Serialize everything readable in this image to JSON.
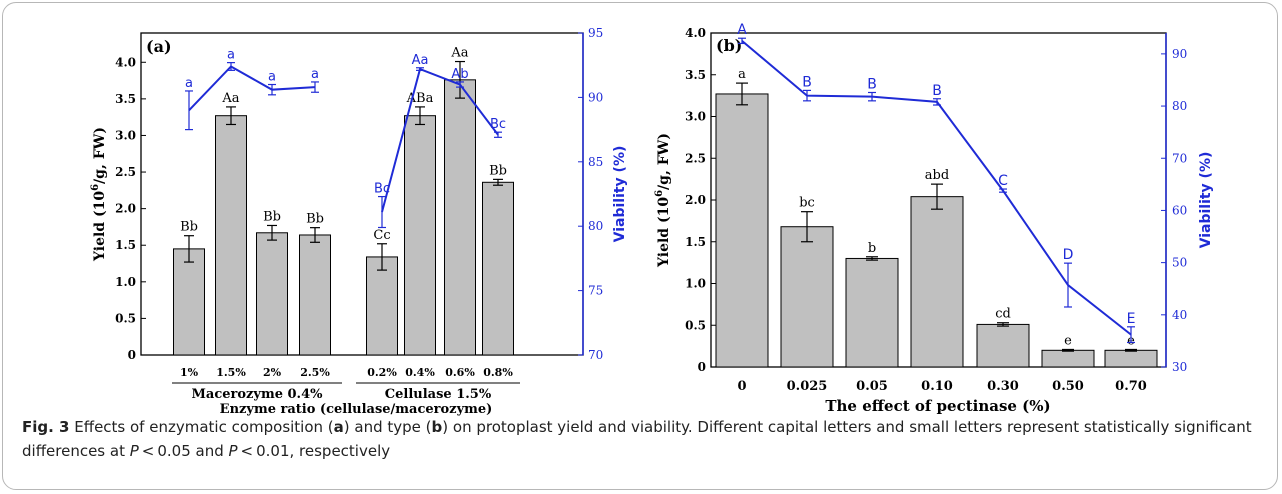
{
  "chart_data": [
    {
      "type": "bar",
      "panel_label": "(a)",
      "xlabel": "Enzyme ratio (cellulase/macerozyme)",
      "ylabel": "Yield (10^6/g, FW)",
      "ylabel_parts": {
        "pre": "Yield (10",
        "sup": "6",
        "post": "/g, FW)"
      },
      "y2label": "Viability (%)",
      "ylim": [
        0,
        4.4
      ],
      "y2lim": [
        70,
        95
      ],
      "y_ticks": [
        "0",
        "0.5",
        "1.0",
        "1.5",
        "2.0",
        "2.5",
        "3.0",
        "3.5",
        "4.0"
      ],
      "y2_ticks": [
        "70",
        "75",
        "80",
        "85",
        "90",
        "95"
      ],
      "groups": [
        {
          "label": "Macerozyme 0.4%",
          "categories": [
            "1%",
            "1.5%",
            "2%",
            "2.5%"
          ]
        },
        {
          "label": "Cellulase 1.5%",
          "categories": [
            "0.2%",
            "0.4%",
            "0.6%",
            "0.8%"
          ]
        }
      ],
      "bars": [
        {
          "group": 0,
          "category": "1%",
          "value": 1.45,
          "error": 0.18,
          "letter": "Bb"
        },
        {
          "group": 0,
          "category": "1.5%",
          "value": 3.27,
          "error": 0.12,
          "letter": "Aa"
        },
        {
          "group": 0,
          "category": "2%",
          "value": 1.67,
          "error": 0.1,
          "letter": "Bb"
        },
        {
          "group": 0,
          "category": "2.5%",
          "value": 1.64,
          "error": 0.1,
          "letter": "Bb"
        },
        {
          "group": 1,
          "category": "0.2%",
          "value": 1.34,
          "error": 0.18,
          "letter": "Cc"
        },
        {
          "group": 1,
          "category": "0.4%",
          "value": 3.27,
          "error": 0.12,
          "letter": "ABa"
        },
        {
          "group": 1,
          "category": "0.6%",
          "value": 3.76,
          "error": 0.25,
          "letter": "Aa"
        },
        {
          "group": 1,
          "category": "0.8%",
          "value": 2.36,
          "error": 0.04,
          "letter": "Bb"
        }
      ],
      "viability_series": [
        {
          "group": 0,
          "values": [
            89.0,
            92.4,
            90.6,
            90.8
          ],
          "errors": [
            1.5,
            0.3,
            0.4,
            0.4
          ],
          "letters": [
            "a",
            "a",
            "a",
            "a"
          ]
        },
        {
          "group": 1,
          "values": [
            81.1,
            92.2,
            91.0,
            87.1
          ],
          "errors": [
            1.2,
            0.1,
            0.2,
            0.2
          ],
          "letters": [
            "Bc",
            "Aa",
            "Ab",
            "Bc"
          ]
        }
      ],
      "bar_color": "#c0c0c0",
      "line_color": "#1f2bd6"
    },
    {
      "type": "bar",
      "panel_label": "(b)",
      "xlabel": "The effect of pectinase (%)",
      "ylabel": "Yield (10^6/g, FW)",
      "ylabel_parts": {
        "pre": "Yield (10",
        "sup": "6",
        "post": "/g, FW)"
      },
      "y2label": "Viability (%)",
      "ylim": [
        0,
        4.0
      ],
      "y2lim": [
        30,
        94
      ],
      "y_ticks": [
        "0",
        "0.5",
        "1.0",
        "1.5",
        "2.0",
        "2.5",
        "3.0",
        "3.5",
        "4.0"
      ],
      "y2_ticks": [
        "30",
        "40",
        "50",
        "60",
        "70",
        "80",
        "90"
      ],
      "categories": [
        "0",
        "0.025",
        "0.05",
        "0.10",
        "0.30",
        "0.50",
        "0.70"
      ],
      "bars": [
        {
          "category": "0",
          "value": 3.27,
          "error": 0.13,
          "letter": "a"
        },
        {
          "category": "0.025",
          "value": 1.68,
          "error": 0.18,
          "letter": "bc"
        },
        {
          "category": "0.05",
          "value": 1.3,
          "error": 0.02,
          "letter": "b"
        },
        {
          "category": "0.10",
          "value": 2.04,
          "error": 0.15,
          "letter": "abd"
        },
        {
          "category": "0.30",
          "value": 0.51,
          "error": 0.02,
          "letter": "cd"
        },
        {
          "category": "0.50",
          "value": 0.2,
          "error": 0.01,
          "letter": "e"
        },
        {
          "category": "0.70",
          "value": 0.2,
          "error": 0.01,
          "letter": "e"
        }
      ],
      "viability_series": [
        {
          "values": [
            92.5,
            82.0,
            81.8,
            80.8,
            63.8,
            45.7,
            36.2
          ],
          "errors": [
            0.5,
            1.0,
            0.8,
            0.6,
            0.3,
            4.2,
            1.5
          ],
          "letters": [
            "A",
            "B",
            "B",
            "B",
            "C",
            "D",
            "E"
          ]
        }
      ],
      "bar_color": "#c0c0c0",
      "line_color": "#1f2bd6"
    }
  ],
  "caption": {
    "fig_label": "Fig. 3",
    "text_1": "  Effects of enzymatic composition (",
    "bold_a": "a",
    "text_2": ") and type (",
    "bold_b": "b",
    "text_3": ") on protoplast yield and viability. Different capital letters and small letters represent statistically significant differences at ",
    "p1": "P",
    "text_4": " < 0.05 and ",
    "p2": "P",
    "text_5": " < 0.01, respectively"
  }
}
